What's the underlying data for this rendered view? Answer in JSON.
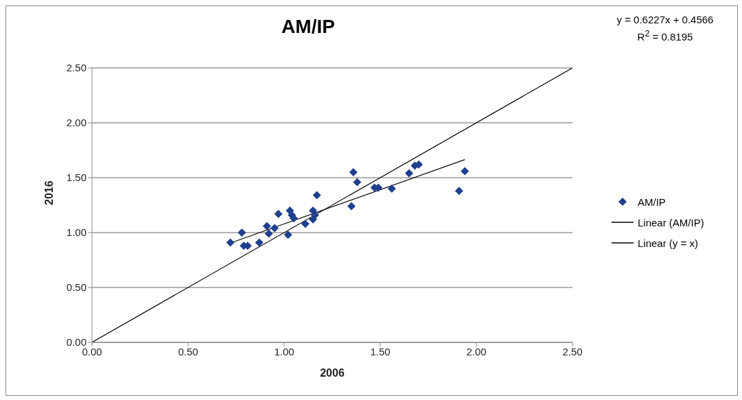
{
  "chart_data": {
    "type": "scatter",
    "title": "AM/IP",
    "xlabel": "2006",
    "ylabel": "2016",
    "annotations": [
      "y = 0.6227x + 0.4566",
      "R$^{2}$ = 0.8195"
    ],
    "xlim": [
      0,
      2.5
    ],
    "ylim": [
      0,
      2.5
    ],
    "xticks": [
      {
        "value": 0,
        "label": "0.00"
      },
      {
        "value": 0.5,
        "label": "0.50"
      },
      {
        "value": 1,
        "label": "1.00"
      },
      {
        "value": 1.5,
        "label": "1.50"
      },
      {
        "value": 2,
        "label": "2.00"
      },
      {
        "value": 2.5,
        "label": "2.50"
      }
    ],
    "yticks": [
      {
        "value": 0,
        "label": "0.00"
      },
      {
        "value": 0.5,
        "label": "0.50"
      },
      {
        "value": 1,
        "label": "1.00"
      },
      {
        "value": 1.5,
        "label": "1.50"
      },
      {
        "value": 2,
        "label": "2.00"
      },
      {
        "value": 2.5,
        "label": "2.50"
      }
    ],
    "grid": "y",
    "legend": "right",
    "series": [
      {
        "name": "AM/IP",
        "marker": "diamond",
        "color": "#1f3f8f",
        "x": [
          0.72,
          0.78,
          0.79,
          0.81,
          0.87,
          0.91,
          0.92,
          0.95,
          0.97,
          1.02,
          1.03,
          1.04,
          1.05,
          1.11,
          1.15,
          1.15,
          1.16,
          1.17,
          1.35,
          1.36,
          1.38,
          1.47,
          1.49,
          1.56,
          1.65,
          1.68,
          1.7,
          1.91,
          1.94
        ],
        "values": [
          0.91,
          1.0,
          0.88,
          0.88,
          0.91,
          1.06,
          0.99,
          1.04,
          1.17,
          0.98,
          1.2,
          1.16,
          1.13,
          1.08,
          1.2,
          1.12,
          1.16,
          1.34,
          1.24,
          1.55,
          1.46,
          1.41,
          1.41,
          1.4,
          1.54,
          1.61,
          1.62,
          1.38,
          1.56
        ]
      },
      {
        "name": "Linear (AM/IP)",
        "type": "line",
        "marker": "none",
        "color": "#000000",
        "x": [
          0.72,
          1.94
        ],
        "values": [
          0.905,
          1.665
        ]
      },
      {
        "name": "Linear (y = x)",
        "type": "line",
        "marker": "none",
        "color": "#000000",
        "x": [
          0,
          2.5
        ],
        "values": [
          0,
          2.5
        ]
      }
    ]
  }
}
